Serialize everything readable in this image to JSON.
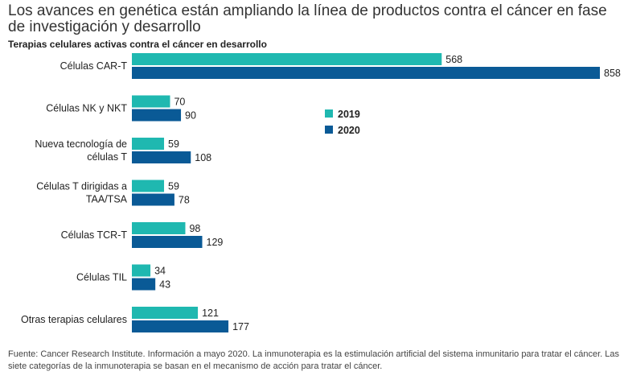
{
  "title": "Los avances en genética están ampliando la línea de productos contra el cáncer en fase de investigación y desarrollo",
  "subtitle": "Terapias celulares activas contra el cáncer en desarrollo",
  "source": "Fuente: Cancer Research Institute. Información a mayo 2020. La inmunoterapia es la estimulación artificial del sistema inmunitario para tratar el cáncer. Las siete categorías de la inmunoterapia se basan en el mecanismo de acción para tratar el cáncer.",
  "colors": {
    "2019": "#1fb8b0",
    "2020": "#0a5a96"
  },
  "chart_data": {
    "type": "bar",
    "orientation": "horizontal",
    "title": "Terapias celulares activas contra el cáncer en desarrollo",
    "categories": [
      [
        "Células CAR-T"
      ],
      [
        "Células NK y NKT"
      ],
      [
        "Nueva tecnología de",
        "células T"
      ],
      [
        "Células T dirigidas a",
        "TAA/TSA"
      ],
      [
        "Células TCR-T"
      ],
      [
        "Células TIL"
      ],
      [
        "Otras terapias celulares"
      ]
    ],
    "series": [
      {
        "name": "2019",
        "values": [
          568,
          70,
          59,
          59,
          98,
          34,
          121
        ]
      },
      {
        "name": "2020",
        "values": [
          858,
          90,
          108,
          78,
          129,
          43,
          177
        ]
      }
    ],
    "xlim": [
      0,
      858
    ],
    "legend": "center-right",
    "grid": false
  }
}
